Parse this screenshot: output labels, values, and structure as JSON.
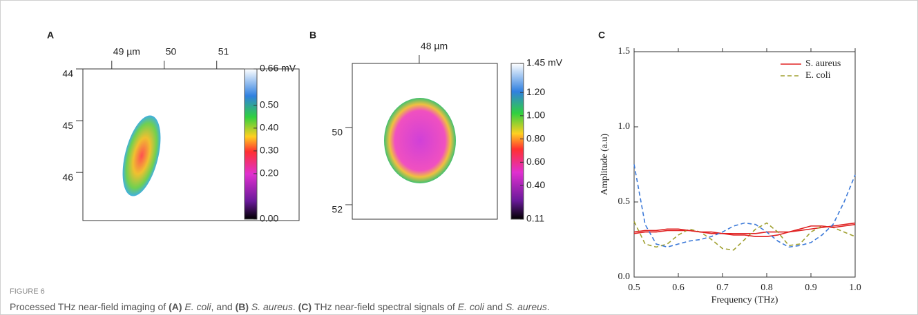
{
  "chart_data": [
    {
      "type": "image",
      "label": "A",
      "xlim": [
        48.45,
        52.57
      ],
      "ylim": [
        44,
        46.93
      ],
      "xticks": [
        {
          "value": 49,
          "label": "49 µm"
        },
        50,
        51
      ],
      "yticks": [
        44,
        45,
        46
      ],
      "clim": [
        0,
        0.66
      ],
      "cticks": [
        {
          "value": 0.66,
          "label": "0.66 mV"
        },
        {
          "value": 0.5,
          "label": "0.50"
        },
        {
          "value": 0.4,
          "label": "0.40"
        },
        {
          "value": 0.3,
          "label": "0.30"
        },
        {
          "value": 0.2,
          "label": "0.20"
        },
        {
          "value": 0,
          "label": "0.00"
        }
      ]
    },
    {
      "type": "image",
      "label": "B",
      "xlim": [
        46.32,
        49.96
      ],
      "ylim": [
        48.34,
        52.375
      ],
      "xticks": [
        {
          "value": 48,
          "label": "48 µm"
        }
      ],
      "yticks": [
        50,
        52
      ],
      "clim": [
        0.11,
        1.45
      ],
      "cticks": [
        {
          "value": 1.45,
          "label": "1.45 mV"
        },
        {
          "value": 1.2,
          "label": "1.20"
        },
        {
          "value": 1,
          "label": "1.00"
        },
        {
          "value": 0.8,
          "label": "0.80"
        },
        {
          "value": 0.6,
          "label": "0.60"
        },
        {
          "value": 0.4,
          "label": "0.40"
        },
        0.11
      ]
    },
    {
      "type": "line",
      "label": "C",
      "x_label": "Frequency (THz)",
      "y_label": "Amplitude (a.u)",
      "xlim": [
        0.5,
        1
      ],
      "ylim": [
        0,
        1.5
      ],
      "xticks": [
        0.5,
        0.6,
        0.7,
        0.8,
        0.9,
        {
          "value": 1,
          "label": "1.0"
        }
      ],
      "yticks": [
        {
          "value": 0,
          "label": "0.0"
        },
        0.5,
        {
          "value": 1,
          "label": "1.0"
        },
        1.5
      ],
      "legend": "upper right",
      "x": [
        0.5,
        0.525,
        0.55,
        0.575,
        0.6,
        0.625,
        0.65,
        0.675,
        0.7,
        0.725,
        0.75,
        0.775,
        0.8,
        0.825,
        0.85,
        0.875,
        0.9,
        0.925,
        0.95,
        0.975,
        1
      ],
      "series": [
        {
          "name": "S. aureus",
          "color": "#e02020",
          "dash": false,
          "values": [
            0.29,
            0.3,
            0.3,
            0.31,
            0.31,
            0.31,
            0.3,
            0.3,
            0.29,
            0.29,
            0.29,
            0.29,
            0.3,
            0.3,
            0.3,
            0.31,
            0.32,
            0.33,
            0.34,
            0.35,
            0.36
          ]
        },
        {
          "name": "E. coli",
          "color": "#a0a030",
          "dash": true,
          "values": [
            0.37,
            0.22,
            0.2,
            0.22,
            0.28,
            0.32,
            0.3,
            0.25,
            0.19,
            0.18,
            0.25,
            0.32,
            0.36,
            0.3,
            0.21,
            0.22,
            0.3,
            0.34,
            0.33,
            0.3,
            0.27
          ]
        },
        {
          "color": "#e02020",
          "dash": false,
          "values": [
            0.3,
            0.31,
            0.31,
            0.32,
            0.32,
            0.31,
            0.3,
            0.29,
            0.29,
            0.28,
            0.28,
            0.27,
            0.27,
            0.28,
            0.3,
            0.32,
            0.34,
            0.34,
            0.33,
            0.34,
            0.35
          ]
        },
        {
          "color": "#3a78d8",
          "dash": true,
          "values": [
            0.75,
            0.35,
            0.22,
            0.2,
            0.22,
            0.24,
            0.25,
            0.27,
            0.3,
            0.34,
            0.36,
            0.35,
            0.3,
            0.24,
            0.2,
            0.21,
            0.23,
            0.28,
            0.35,
            0.5,
            0.68
          ]
        }
      ]
    }
  ],
  "figure_label": "FIGURE 6",
  "caption": [
    {
      "text": "Processed THz near-field imaging of ",
      "style": "normal"
    },
    {
      "text": "(A) ",
      "style": "bold"
    },
    {
      "text": "E. coli",
      "style": "italic"
    },
    {
      "text": ", and ",
      "style": "normal"
    },
    {
      "text": "(B) ",
      "style": "bold"
    },
    {
      "text": "S. aureus",
      "style": "italic"
    },
    {
      "text": ". ",
      "style": "normal"
    },
    {
      "text": "(C) ",
      "style": "bold"
    },
    {
      "text": "THz near-field spectral signals of ",
      "style": "normal"
    },
    {
      "text": "E. coli",
      "style": "italic"
    },
    {
      "text": " and ",
      "style": "normal"
    },
    {
      "text": "S. aureus",
      "style": "italic"
    },
    {
      "text": ".",
      "style": "normal"
    }
  ]
}
